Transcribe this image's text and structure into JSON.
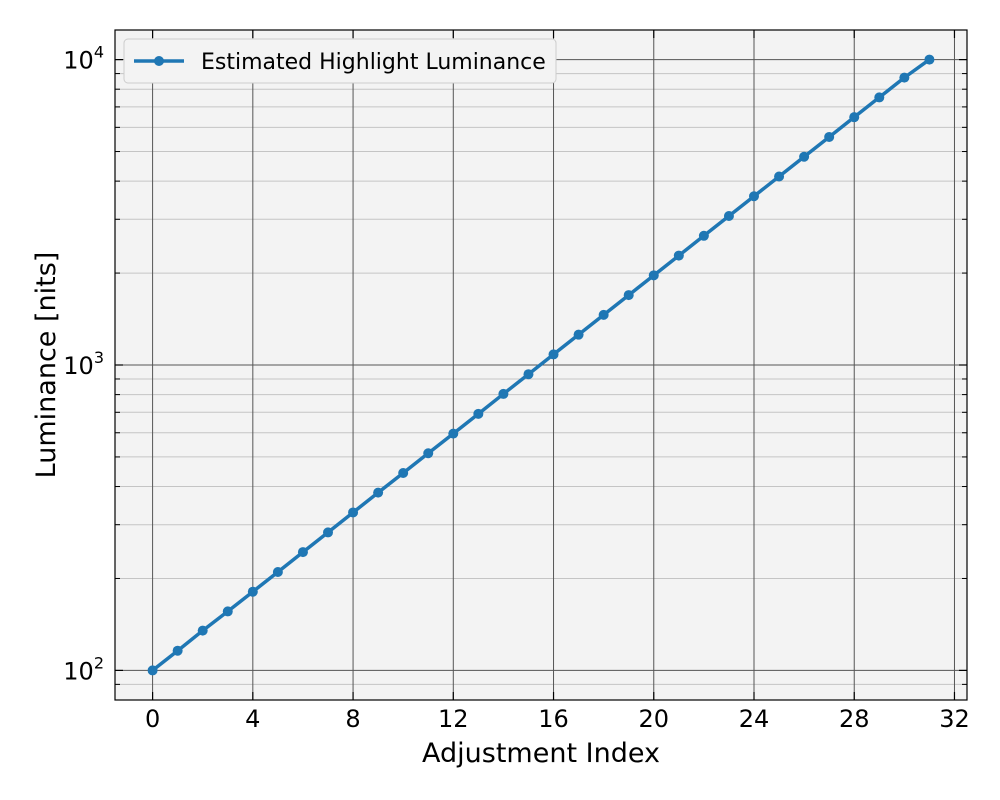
{
  "chart_data": {
    "type": "line",
    "title": "",
    "xlabel": "Adjustment Index",
    "ylabel": "Luminance [nits]",
    "xlim": [
      -1.5,
      32.5
    ],
    "ylim": [
      80,
      12500
    ],
    "yscale": "log",
    "grid": true,
    "legend_position": "top-left",
    "x_ticks": [
      0,
      4,
      8,
      12,
      16,
      20,
      24,
      28,
      32
    ],
    "y_ticks": [
      {
        "value": 100,
        "base": "10",
        "exp": "2"
      },
      {
        "value": 1000,
        "base": "10",
        "exp": "3"
      },
      {
        "value": 10000,
        "base": "10",
        "exp": "4"
      }
    ],
    "series": [
      {
        "name": "Estimated Highlight Luminance",
        "color": "#1f77b4",
        "x": [
          0,
          1,
          2,
          3,
          4,
          5,
          6,
          7,
          8,
          9,
          10,
          11,
          12,
          13,
          14,
          15,
          16,
          17,
          18,
          19,
          20,
          21,
          22,
          23,
          24,
          25,
          26,
          27,
          28,
          29,
          30,
          31
        ],
        "y": [
          100,
          116,
          135,
          156,
          181,
          210,
          244,
          283,
          329,
          382,
          443,
          514,
          596,
          692,
          804,
          933,
          1083,
          1257,
          1459,
          1694,
          1966,
          2282,
          2649,
          3075,
          3569,
          4142,
          4808,
          5581,
          6478,
          7519,
          8728,
          10000
        ]
      }
    ]
  }
}
